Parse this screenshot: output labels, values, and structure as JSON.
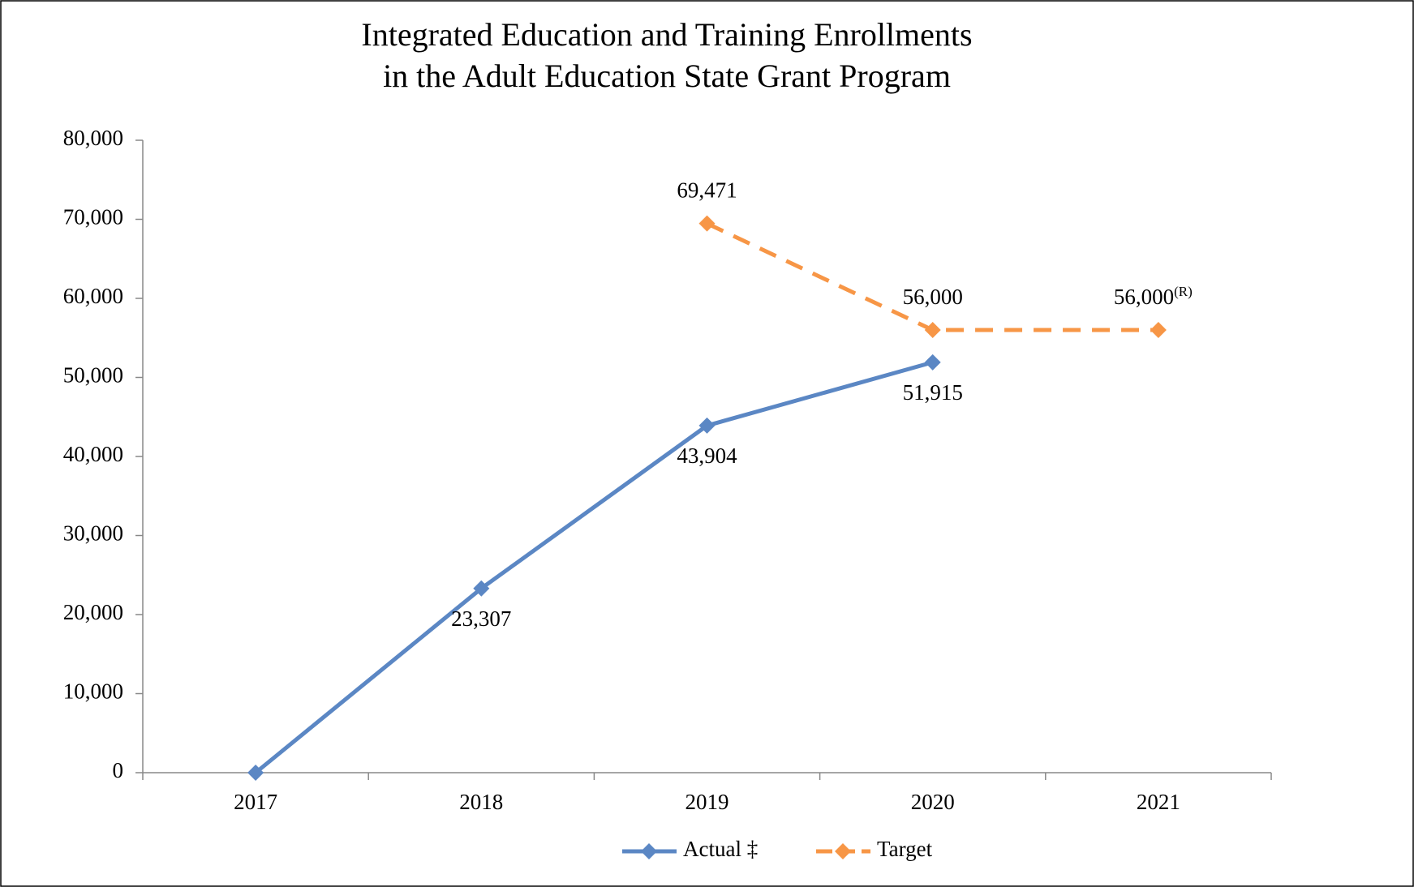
{
  "chart_data": {
    "type": "line",
    "title": [
      "Integrated Education and Training Enrollments",
      "in the Adult Education State Grant Program"
    ],
    "categories": [
      "2017",
      "2018",
      "2019",
      "2020",
      "2021"
    ],
    "series": [
      {
        "name": "Actual ‡",
        "color": "#5b87c4",
        "dash": false,
        "values": [
          0,
          23307,
          43904,
          51915,
          null
        ],
        "value_labels": [
          null,
          "23,307",
          "43,904",
          "51,915",
          null
        ],
        "label_position": "below"
      },
      {
        "name": "Target",
        "color": "#f79646",
        "dash": true,
        "values": [
          null,
          null,
          69471,
          56000,
          56000
        ],
        "value_labels": [
          null,
          null,
          "69,471",
          "56,000",
          "56,000"
        ],
        "value_label_suffixes": [
          null,
          null,
          null,
          null,
          "(R)"
        ],
        "label_position": "above"
      }
    ],
    "ylim": [
      0,
      80000
    ],
    "yticks": [
      0,
      {
        "value": 10000,
        "label": "10,000"
      },
      {
        "value": 20000,
        "label": "20,000"
      },
      {
        "value": 30000,
        "label": "30,000"
      },
      {
        "value": 40000,
        "label": "40,000"
      },
      {
        "value": 50000,
        "label": "50,000"
      },
      {
        "value": 60000,
        "label": "60,000"
      },
      {
        "value": 70000,
        "label": "70,000"
      },
      {
        "value": 80000,
        "label": "80,000"
      }
    ],
    "grid": false,
    "legend": "bottom"
  }
}
